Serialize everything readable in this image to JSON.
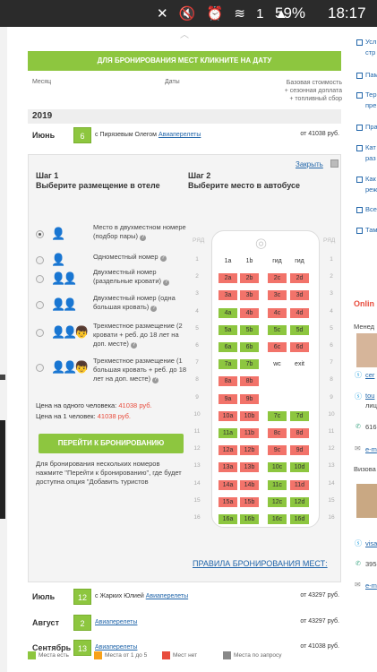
{
  "statusbar": {
    "icons": "✕ 🔇 ⏰ ≋ 1 ▲",
    "battery": "59%",
    "time": "18:17"
  },
  "banner": "ДЛЯ БРОНИРОВАНИЯ МЕСТ КЛИКНИТЕ НА ДАТУ",
  "table_header": {
    "month": "Месяц",
    "dates": "Даты",
    "price": [
      "Базовая стоимость",
      "+ сезонная доплата",
      "+ топливный сбор"
    ]
  },
  "year": "2019",
  "tours": [
    {
      "month": "Июнь",
      "date": "6",
      "prefix": "с",
      "leader": "Пирязевым Олегом",
      "link": "Авиаперелеты",
      "price": "от 41038 руб."
    },
    {
      "month": "Июль",
      "date": "12",
      "prefix": "с",
      "leader": "Жарких Юлией",
      "link": "Авиаперелеты",
      "price": "от 43297 руб."
    },
    {
      "month": "Август",
      "date": "2",
      "prefix": "",
      "leader": "",
      "link": "Авиаперелеты",
      "price": "от 43297 руб."
    },
    {
      "month": "Сентябрь",
      "date": "13",
      "prefix": "",
      "leader": "",
      "link": "Авиаперелеты",
      "price": "от 41038 руб."
    }
  ],
  "panel": {
    "close": "Закрыть",
    "step1": {
      "title": "Шаг 1",
      "subtitle": "Выберите размещение в отеле"
    },
    "step2": {
      "title": "Шаг 2",
      "subtitle": "Выберите место в автобусе"
    },
    "options": [
      {
        "icon": "person-icon",
        "people": "👤",
        "label": "Место в двухместном номере (подбор пары)",
        "selected": true
      },
      {
        "icon": "person-icon",
        "people": "👤",
        "label": "Одноместный номер",
        "selected": false
      },
      {
        "icon": "two-persons-icon",
        "people": "👤👤",
        "label": "Двухместный номер (раздельные кровати)",
        "selected": false
      },
      {
        "icon": "two-persons-icon",
        "people": "👤👤",
        "label": "Двухместный номер (одна большая кровать)",
        "selected": false
      },
      {
        "icon": "family-icon",
        "people": "👤👤👦",
        "label": "Трехместное размещение (2 кровати + реб. до 18 лет на доп. месте)",
        "selected": false
      },
      {
        "icon": "family-icon",
        "people": "👤👤👦",
        "label": "Трехместное размещение (1 большая кровать + реб. до 18 лет на доп. месте)",
        "selected": false
      }
    ],
    "price_one": {
      "label": "Цена на одного человека:",
      "value": "41038 руб."
    },
    "price_per": {
      "label": "Цена на 1 человек:",
      "value": "41038 руб."
    },
    "book_button": "ПЕРЕЙТИ К БРОНИРОВАНИЮ",
    "note": "Для бронирования нескольких номеров нажмите \"Перейти к бронированию\", где будет доступна опция \"Добавить туристов",
    "rules_link": "ПРАВИЛА БРОНИРОВАНИЯ МЕСТ:"
  },
  "bus": {
    "row_label": "РЯД",
    "rows": [
      {
        "n": "1",
        "seats": [
          [
            "1a",
            "lbl"
          ],
          [
            "1b",
            "lbl"
          ],
          [
            "гид",
            "lbl"
          ],
          [
            "гид",
            "lbl"
          ]
        ]
      },
      {
        "n": "2",
        "seats": [
          [
            "2a",
            "busy"
          ],
          [
            "2b",
            "busy"
          ],
          [
            "2c",
            "busy"
          ],
          [
            "2d",
            "busy"
          ]
        ]
      },
      {
        "n": "3",
        "seats": [
          [
            "3a",
            "busy"
          ],
          [
            "3b",
            "busy"
          ],
          [
            "3c",
            "busy"
          ],
          [
            "3d",
            "busy"
          ]
        ]
      },
      {
        "n": "4",
        "seats": [
          [
            "4a",
            "free"
          ],
          [
            "4b",
            "busy"
          ],
          [
            "4c",
            "busy"
          ],
          [
            "4d",
            "busy"
          ]
        ]
      },
      {
        "n": "5",
        "seats": [
          [
            "5a",
            "free"
          ],
          [
            "5b",
            "free"
          ],
          [
            "5c",
            "free"
          ],
          [
            "5d",
            "free"
          ]
        ]
      },
      {
        "n": "6",
        "seats": [
          [
            "6a",
            "free"
          ],
          [
            "6b",
            "free"
          ],
          [
            "6c",
            "busy"
          ],
          [
            "6d",
            "busy"
          ]
        ]
      },
      {
        "n": "7",
        "seats": [
          [
            "7a",
            "free"
          ],
          [
            "7b",
            "free"
          ],
          [
            "wc",
            "lbl"
          ],
          [
            "exit",
            "lbl"
          ]
        ]
      },
      {
        "n": "8",
        "seats": [
          [
            "8a",
            "busy"
          ],
          [
            "8b",
            "busy"
          ],
          [
            "",
            ""
          ],
          [
            "",
            ""
          ]
        ]
      },
      {
        "n": "9",
        "seats": [
          [
            "9a",
            "busy"
          ],
          [
            "9b",
            "busy"
          ],
          [
            "",
            ""
          ],
          [
            "",
            ""
          ]
        ]
      },
      {
        "n": "10",
        "seats": [
          [
            "10a",
            "busy"
          ],
          [
            "10b",
            "busy"
          ],
          [
            "7c",
            "free"
          ],
          [
            "7d",
            "free"
          ]
        ]
      },
      {
        "n": "11",
        "seats": [
          [
            "11a",
            "free"
          ],
          [
            "11b",
            "busy"
          ],
          [
            "8c",
            "busy"
          ],
          [
            "8d",
            "busy"
          ]
        ]
      },
      {
        "n": "12",
        "seats": [
          [
            "12a",
            "busy"
          ],
          [
            "12b",
            "busy"
          ],
          [
            "9c",
            "busy"
          ],
          [
            "9d",
            "busy"
          ]
        ]
      },
      {
        "n": "13",
        "seats": [
          [
            "13a",
            "busy"
          ],
          [
            "13b",
            "busy"
          ],
          [
            "10c",
            "free"
          ],
          [
            "10d",
            "free"
          ]
        ]
      },
      {
        "n": "14",
        "seats": [
          [
            "14a",
            "busy"
          ],
          [
            "14b",
            "busy"
          ],
          [
            "11c",
            "free"
          ],
          [
            "11d",
            "busy"
          ]
        ]
      },
      {
        "n": "15",
        "seats": [
          [
            "15a",
            "busy"
          ],
          [
            "15b",
            "busy"
          ],
          [
            "12c",
            "free"
          ],
          [
            "12d",
            "free"
          ]
        ]
      },
      {
        "n": "16",
        "seats": [
          [
            "16a",
            "free"
          ],
          [
            "16b",
            "free"
          ],
          [
            "16c",
            "free"
          ],
          [
            "16d",
            "free"
          ]
        ]
      }
    ]
  },
  "legend": [
    {
      "label": "Места есть",
      "color": "#8dc63f"
    },
    {
      "label": "Места от 1 до 5",
      "color": "#f7a11a"
    },
    {
      "label": "Мест нет",
      "color": "#e84c3d"
    },
    {
      "label": "Места по запросу",
      "color": "#888888"
    }
  ],
  "sidebar": {
    "items": [
      "Усл",
      "стр",
      "Пам",
      "Тер",
      "пре",
      "Пра",
      "Кат",
      "раз",
      "Как",
      "реж",
      "Все",
      "Там"
    ],
    "online": "Onlin",
    "manager_label": "Менед",
    "skype1": "сеr",
    "skype2": "tou",
    "skype2b": "лиц",
    "phone1": "616",
    "email1": "e-m",
    "visa_label": "Визова",
    "skype3": "visa",
    "phone2": "395",
    "email2": "e-m"
  }
}
